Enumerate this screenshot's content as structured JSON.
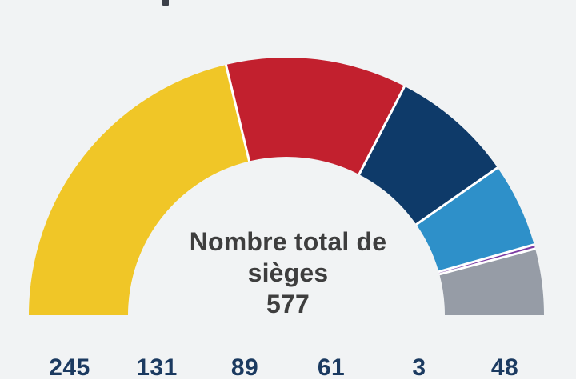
{
  "chart_data": {
    "type": "pie",
    "variant": "half-donut",
    "title": "",
    "center_label": {
      "line1": "Nombre total de",
      "line2": "sièges",
      "value": "577"
    },
    "total_seats": 577,
    "values": [
      245,
      131,
      89,
      61,
      3,
      48
    ],
    "colors": [
      "#f0c627",
      "#c2202e",
      "#0e3a69",
      "#2e90c9",
      "#7c3ba3",
      "#969ca6"
    ],
    "segment_names": [
      "segment-yellow",
      "segment-red",
      "segment-dark-navy",
      "segment-light-blue",
      "segment-purple",
      "segment-gray"
    ],
    "separator_color": "#ffffff",
    "value_label_color": "#1b3a60",
    "center_label_color": "#3e3e3e",
    "background_color": "#f1f3f4",
    "start_angle": -90,
    "end_angle": 90,
    "grid": false,
    "legend_position": "bottom-values-row"
  }
}
